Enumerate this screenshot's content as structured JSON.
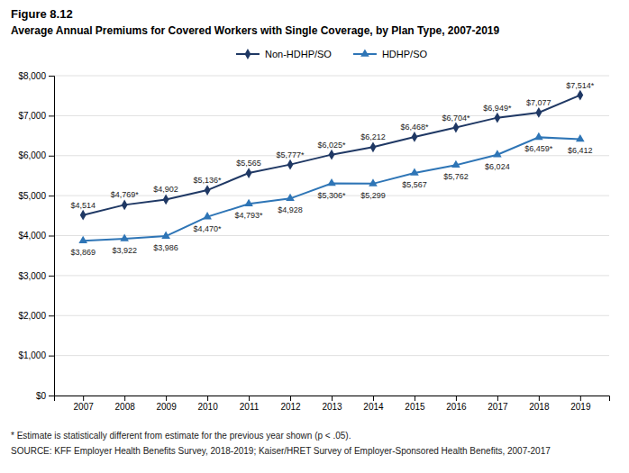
{
  "chart_data": {
    "type": "line",
    "title": "Figure 8.12",
    "subtitle": "Average Annual Premiums for Covered Workers with Single Coverage, by Plan Type, 2007-2019",
    "annotations": [
      "* Estimate is statistically different from estimate for the previous year shown (p < .05).",
      "SOURCE: KFF Employer Health Benefits Survey, 2018-2019; Kaiser/HRET Survey of Employer-Sponsored Health Benefits, 2007-2017"
    ],
    "x": [
      2007,
      2008,
      2009,
      2010,
      2011,
      2012,
      2013,
      2014,
      2015,
      2016,
      2017,
      2018,
      2019
    ],
    "xlim": [
      2006.3,
      2019.7
    ],
    "xticks": [
      2007,
      2008,
      2009,
      2010,
      2011,
      2012,
      2013,
      2014,
      2015,
      2016,
      2017,
      2018,
      2019
    ],
    "ylim": [
      0,
      8000
    ],
    "yticks": [
      {
        "value": 0,
        "label": "$0"
      },
      {
        "value": 1000,
        "label": "$1,000"
      },
      {
        "value": 2000,
        "label": "$2,000"
      },
      {
        "value": 3000,
        "label": "$3,000"
      },
      {
        "value": 4000,
        "label": "$4,000"
      },
      {
        "value": 5000,
        "label": "$5,000"
      },
      {
        "value": 6000,
        "label": "$6,000"
      },
      {
        "value": 7000,
        "label": "$7,000"
      },
      {
        "value": 8000,
        "label": "$8,000"
      }
    ],
    "grid": true,
    "legend": "top",
    "data_labels": true,
    "series": [
      {
        "name": "Non-HDHP/SO",
        "color": "#1f3864",
        "marker": "diamond",
        "values": [
          4514,
          4769,
          4902,
          5136,
          5565,
          5777,
          6025,
          6212,
          6468,
          6704,
          6949,
          7077,
          7514
        ],
        "value_labels": [
          "$4,514",
          "$4,769*",
          "$4,902",
          "$5,136*",
          "$5,565",
          "$5,777*",
          "$6,025*",
          "$6,212",
          "$6,468*",
          "$6,704*",
          "$6,949*",
          "$7,077",
          "$7,514*"
        ]
      },
      {
        "name": "HDHP/SO",
        "color": "#2e75b6",
        "marker": "triangle",
        "values": [
          3869,
          3922,
          3986,
          4470,
          4793,
          4928,
          5306,
          5299,
          5567,
          5762,
          6024,
          6459,
          6412
        ],
        "value_labels": [
          "$3,869",
          "$3,922",
          "$3,986",
          "$4,470*",
          "$4,793*",
          "$4,928",
          "$5,306*",
          "$5,299",
          "$5,567",
          "$5,762",
          "$6,024",
          "$6,459*",
          "$6,412"
        ]
      }
    ]
  }
}
